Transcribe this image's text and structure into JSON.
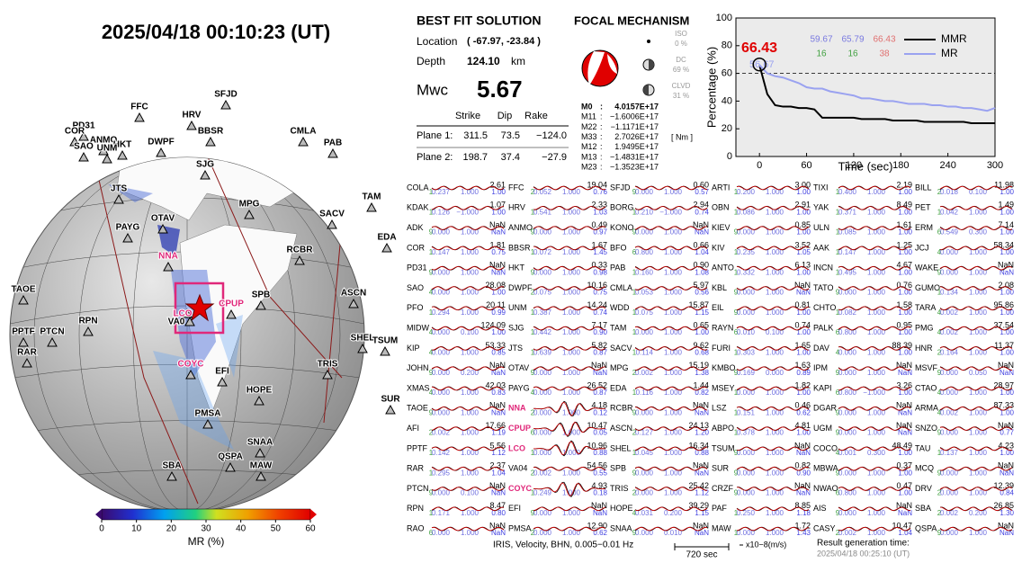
{
  "header": {
    "title": "2025/04/18  00:10:23 (UT)"
  },
  "solution": {
    "title": "BEST FIT SOLUTION",
    "location_label": "Location",
    "location": "( -67.97,  -23.84 )",
    "depth_label": "Depth",
    "depth": "124.10",
    "depth_unit": "km",
    "mw_label": "Mwc",
    "mw": "5.67",
    "columns": [
      "Strike",
      "Dip",
      "Rake"
    ],
    "planes": [
      [
        "Plane 1:",
        "311.5",
        "73.5",
        "−124.0"
      ],
      [
        "Plane 2:",
        "198.7",
        "37.4",
        "−27.9"
      ]
    ]
  },
  "focal": {
    "title": "FOCAL MECHANISM",
    "components": [
      [
        "ISO",
        "0 %"
      ],
      [
        "DC",
        "69 %"
      ],
      [
        "CLVD",
        "31 %"
      ]
    ],
    "tensor": [
      [
        "M0",
        ":",
        "4.0157E+17"
      ],
      [
        "M11",
        ":",
        "−1.6006E+17"
      ],
      [
        "M22",
        ":",
        "−1.1171E+17"
      ],
      [
        "M33",
        ":",
        "2.7026E+17"
      ],
      [
        "M12",
        ":",
        "1.9495E+17"
      ],
      [
        "M13",
        ":",
        "−1.4831E+17"
      ],
      [
        "M23",
        ":",
        "−1.3523E+17"
      ]
    ],
    "unit": "[ Nm ]"
  },
  "chart_data": {
    "type": "line",
    "x_label": "Time (sec)",
    "y_label": "Percentage (%)",
    "xlim": [
      -30,
      300
    ],
    "ylim": [
      0,
      100
    ],
    "xticks": [
      0,
      60,
      120,
      180,
      240,
      300
    ],
    "yticks": [
      0,
      20,
      40,
      60,
      80,
      100
    ],
    "threshold": 60,
    "x": [
      0,
      10,
      20,
      30,
      40,
      50,
      60,
      70,
      80,
      90,
      100,
      110,
      120,
      130,
      140,
      150,
      160,
      170,
      180,
      190,
      200,
      210,
      220,
      230,
      240,
      250,
      260,
      270,
      280,
      290,
      300
    ],
    "series": [
      {
        "name": "MMR",
        "color": "#000000",
        "values": [
          66,
          45,
          37,
          36,
          36,
          35,
          35,
          34,
          28,
          28,
          28,
          28,
          28,
          27,
          27,
          27,
          27,
          26,
          26,
          26,
          26,
          25,
          25,
          25,
          25,
          25,
          25,
          24,
          24,
          24,
          24
        ]
      },
      {
        "name": "MR",
        "color": "#9aa2f0",
        "values": [
          66,
          60,
          58,
          57,
          55,
          53,
          50,
          49,
          49,
          47,
          46,
          45,
          44,
          42,
          42,
          41,
          40,
          40,
          39,
          38,
          38,
          38,
          37,
          37,
          36,
          36,
          35,
          35,
          34,
          33,
          35
        ]
      }
    ],
    "peak": {
      "label": "66.43",
      "color": "#e00000",
      "x": 0,
      "y": 66.43
    },
    "behind_label": "56.67",
    "stats": [
      [
        {
          "text": "59.67",
          "color": "#7a7ae0"
        },
        {
          "text": "65.79",
          "color": "#7a7ae0"
        },
        {
          "text": "66.43",
          "color": "#e07070"
        }
      ],
      [
        {
          "text": "16",
          "color": "#40a040"
        },
        {
          "text": "16",
          "color": "#40a040"
        },
        {
          "text": "38",
          "color": "#e07070"
        }
      ]
    ]
  },
  "colorbar": {
    "label": "MR (%)",
    "ticks": [
      0,
      10,
      20,
      30,
      40,
      50,
      60
    ]
  },
  "map_stations": [
    {
      "name": "SFJD"
    },
    {
      "name": "FFC"
    },
    {
      "name": "HRV"
    },
    {
      "name": "PD31"
    },
    {
      "name": "COR"
    },
    {
      "name": "ANMO"
    },
    {
      "name": "HKT"
    },
    {
      "name": "SAO"
    },
    {
      "name": "BBSR"
    },
    {
      "name": "DWPF"
    },
    {
      "name": "UNM"
    },
    {
      "name": "SJG"
    },
    {
      "name": "CMLA"
    },
    {
      "name": "PAB"
    },
    {
      "name": "JTS"
    },
    {
      "name": "SACV"
    },
    {
      "name": "TAM"
    },
    {
      "name": "MPG"
    },
    {
      "name": "PAYG"
    },
    {
      "name": "OTAV"
    },
    {
      "name": "RCBR"
    },
    {
      "name": "NNA",
      "color": "#e0287a"
    },
    {
      "name": "ASCN"
    },
    {
      "name": "EDA"
    },
    {
      "name": "SPB"
    },
    {
      "name": "CPUP",
      "color": "#e0287a"
    },
    {
      "name": "LCO",
      "color": "#e0287a"
    },
    {
      "name": "SHEL"
    },
    {
      "name": "TAOE"
    },
    {
      "name": "RPN"
    },
    {
      "name": "VA0"
    },
    {
      "name": "PPTF"
    },
    {
      "name": "PTCN"
    },
    {
      "name": "RAR"
    },
    {
      "name": "COYC",
      "color": "#e0287a"
    },
    {
      "name": "TRIS"
    },
    {
      "name": "TSUM"
    },
    {
      "name": "EFI"
    },
    {
      "name": "SUR"
    },
    {
      "name": "HOPE"
    },
    {
      "name": "PMSA"
    },
    {
      "name": "SNAA"
    },
    {
      "name": "QSPA"
    },
    {
      "name": "SBA"
    },
    {
      "name": "MAW"
    }
  ],
  "stations": [
    [
      "COLA",
      "2.61",
      "1",
      "0.237",
      "1.000",
      "1.00"
    ],
    [
      "KDAK",
      "1.07",
      "1",
      "0.126",
      "−1.000",
      "1.00"
    ],
    [
      "ADK",
      "NaN",
      "9",
      "0.000",
      "1.000",
      "NaN"
    ],
    [
      "COR",
      "1.81",
      "1",
      "0.147",
      "1.000",
      "0.75"
    ],
    [
      "PD31",
      "NaN",
      "9",
      "0.000",
      "1.000",
      "NaN"
    ],
    [
      "SAO",
      "28.08",
      "4",
      "0.000",
      "1.000",
      "1.00"
    ],
    [
      "PFO",
      "20.11",
      "1",
      "0.294",
      "1.000",
      "0.99"
    ],
    [
      "MIDW",
      "124.09",
      "4",
      "0.000",
      "0.100",
      "1.00"
    ],
    [
      "KIP",
      "53.33",
      "4",
      "0.000",
      "1.000",
      "0.85"
    ],
    [
      "JOHN",
      "NaN",
      "9",
      "0.000",
      "0.200",
      "NaN"
    ],
    [
      "XMAS",
      "42.03",
      "4",
      "0.000",
      "1.000",
      "0.83"
    ],
    [
      "TAOE",
      "NaN",
      "9",
      "0.000",
      "1.000",
      "NaN"
    ],
    [
      "AFI",
      "17.66",
      "2",
      "0.002",
      "1.000",
      "1.19"
    ],
    [
      "PPTF",
      "5.56",
      "1",
      "0.142",
      "1.000",
      "1.12"
    ],
    [
      "RAR",
      "2.37",
      "1",
      "0.295",
      "1.000",
      "1.04"
    ],
    [
      "PTCN",
      "NaN",
      "9",
      "0.000",
      "0.100",
      "NaN"
    ],
    [
      "RPN",
      "8.47",
      "1",
      "0.171",
      "1.000",
      "0.80"
    ],
    [
      "RAO",
      "NaN",
      "6",
      "0.000",
      "1.000",
      "NaN"
    ],
    [
      "FFC",
      "19.04",
      "2",
      "0.052",
      "1.000",
      "0.76"
    ],
    [
      "HRV",
      "2.33",
      "1",
      "0.541",
      "1.000",
      "1.03"
    ],
    [
      "ANMO",
      "0.49",
      "9",
      "0.000",
      "1.000",
      "0.97"
    ],
    [
      "BBSR",
      "1.67",
      "1",
      "0.072",
      "1.000",
      "1.45"
    ],
    [
      "HKT",
      "0.33",
      "9",
      "0.000",
      "1.000",
      "0.98"
    ],
    [
      "DWPF",
      "10.16",
      "2",
      "0.075",
      "1.000",
      "0.75"
    ],
    [
      "UNM",
      "14.24",
      "1",
      "0.387",
      "1.000",
      "0.74"
    ],
    [
      "SJG",
      "7.17",
      "1",
      "0.442",
      "1.000",
      "0.90"
    ],
    [
      "JTS",
      "5.82",
      "1",
      "0.639",
      "1.000",
      "0.87"
    ],
    [
      "OTAV",
      "NaN",
      "9",
      "0.000",
      "1.000",
      "NaN"
    ],
    [
      "PAYG",
      "26.52",
      "4",
      "0.000",
      "1.000",
      "0.87"
    ],
    [
      "NNA",
      "4.18",
      "2",
      "0.000",
      "1.000",
      "0.12",
      "#e0287a"
    ],
    [
      "CPUP",
      "10.47",
      "6",
      "0.000",
      "1.000",
      "0.05",
      "#e0287a"
    ],
    [
      "LCO",
      "10.96",
      "1",
      "0.000",
      "1.000",
      "0.88",
      "#e0287a"
    ],
    [
      "VA04",
      "54.56",
      "2",
      "0.002",
      "1.000",
      "0.55"
    ],
    [
      "COYC",
      "4.93",
      "1",
      "0.249",
      "1.000",
      "0.18",
      "#e0287a"
    ],
    [
      "EFI",
      "NaN",
      "9",
      "0.000",
      "1.000",
      "NaN"
    ],
    [
      "PMSA",
      "12.90",
      "2",
      "0.000",
      "1.000",
      "0.62"
    ],
    [
      "SFJD",
      "0.60",
      "9",
      "0.000",
      "1.000",
      "0.57"
    ],
    [
      "BORG",
      "2.94",
      "1",
      "0.210",
      "−1.000",
      "0.74"
    ],
    [
      "KONO",
      "NaN",
      "9",
      "0.000",
      "1.000",
      "NaN"
    ],
    [
      "BFO",
      "0.66",
      "6",
      "0.800",
      "1.000",
      "1.04"
    ],
    [
      "PAB",
      "0.90",
      "1",
      "0.160",
      "1.000",
      "1.08"
    ],
    [
      "CMLA",
      "5.97",
      "1",
      "0.053",
      "1.000",
      "0.56"
    ],
    [
      "WDD",
      "15.87",
      "1",
      "0.075",
      "1.000",
      "1.15"
    ],
    [
      "TAM",
      "0.65",
      "1",
      "0.000",
      "1.000",
      "1.00"
    ],
    [
      "SACV",
      "9.62",
      "1",
      "0.114",
      "1.000",
      "0.68"
    ],
    [
      "MPG",
      "15.19",
      "2",
      "0.002",
      "1.000",
      "1.38"
    ],
    [
      "EDA",
      "1.44",
      "1",
      "0.116",
      "1.000",
      "0.82"
    ],
    [
      "RCBR",
      "NaN",
      "9",
      "0.000",
      "1.000",
      "NaN"
    ],
    [
      "ASCN",
      "24.13",
      "2",
      "0.127",
      "1.000",
      "1.20"
    ],
    [
      "SHEL",
      "16.34",
      "1",
      "0.045",
      "1.000",
      "0.88"
    ],
    [
      "SPB",
      "NaN",
      "9",
      "0.000",
      "1.000",
      "NaN"
    ],
    [
      "TRIS",
      "25.42",
      "2",
      "0.000",
      "1.000",
      "1.12"
    ],
    [
      "HOPE",
      "39.29",
      "4",
      "0.031",
      "0.200",
      "1.15"
    ],
    [
      "SNAA",
      "NaN",
      "9",
      "0.000",
      "0.010",
      "NaN"
    ],
    [
      "ARTI",
      "3.00",
      "1",
      "0.200",
      "1.000",
      "1.00"
    ],
    [
      "OBN",
      "2.91",
      "1",
      "0.086",
      "1.000",
      "1.00"
    ],
    [
      "KIEV",
      "0.85",
      "9",
      "0.000",
      "1.000",
      "1.00"
    ],
    [
      "KIV",
      "3.52",
      "1",
      "0.235",
      "1.000",
      "1.05"
    ],
    [
      "ANTO",
      "6.13",
      "1",
      "0.332",
      "1.000",
      "1.00"
    ],
    [
      "KBL",
      "NaN",
      "9",
      "0.000",
      "1.000",
      "NaN"
    ],
    [
      "EIL",
      "0.81",
      "9",
      "0.000",
      "1.000",
      "1.00"
    ],
    [
      "RAYN",
      "0.74",
      "6",
      "0.010",
      "0.100",
      "1.00"
    ],
    [
      "FURI",
      "1.65",
      "1",
      "0.303",
      "1.000",
      "1.00"
    ],
    [
      "KMBO",
      "1.63",
      "9",
      "0.169",
      "0.000",
      "0.89"
    ],
    [
      "MSEY",
      "1.82",
      "1",
      "0.000",
      "1.000",
      "1.00"
    ],
    [
      "LSZ",
      "0.46",
      "1",
      "0.151",
      "1.000",
      "0.62"
    ],
    [
      "ABPO",
      "4.81",
      "1",
      "0.378",
      "1.000",
      "1.00"
    ],
    [
      "TSUM",
      "NaN",
      "9",
      "0.000",
      "1.000",
      "NaN"
    ],
    [
      "SUR",
      "0.82",
      "9",
      "0.000",
      "1.000",
      "0.90"
    ],
    [
      "CRZF",
      "NaN",
      "9",
      "0.000",
      "1.000",
      "NaN"
    ],
    [
      "PAF",
      "8.85",
      "1",
      "0.250",
      "1.000",
      "1.18"
    ],
    [
      "MAW",
      "1.72",
      "1",
      "0.000",
      "1.000",
      "1.43"
    ],
    [
      "TIXI",
      "2.19",
      "1",
      "0.400",
      "1.000",
      "1.00"
    ],
    [
      "YAK",
      "8.49",
      "1",
      "0.371",
      "1.000",
      "1.00"
    ],
    [
      "ULN",
      "1.61",
      "1",
      "0.085",
      "1.000",
      "1.00"
    ],
    [
      "AAK",
      "1.25",
      "1",
      "0.147",
      "1.000",
      "1.00"
    ],
    [
      "INCN",
      "4.67",
      "1",
      "0.495",
      "1.000",
      "1.00"
    ],
    [
      "TATO",
      "0.76",
      "9",
      "0.000",
      "1.000",
      "1.00"
    ],
    [
      "CHTO",
      "1.58",
      "1",
      "0.082",
      "1.000",
      "1.00"
    ],
    [
      "PALK",
      "0.95",
      "6",
      "0.800",
      "1.000",
      "1.00"
    ],
    [
      "DAV",
      "88.39",
      "4",
      "0.000",
      "1.000",
      "1.00"
    ],
    [
      "IPM",
      "NaN",
      "9",
      "0.000",
      "1.000",
      "NaN"
    ],
    [
      "KAPI",
      "3.26",
      "6",
      "0.800",
      "−1.000",
      "1.00"
    ],
    [
      "DGAR",
      "NaN",
      "9",
      "0.000",
      "1.000",
      "NaN"
    ],
    [
      "UGM",
      "NaN",
      "9",
      "0.000",
      "1.000",
      "NaN"
    ],
    [
      "COCO",
      "48.49",
      "4",
      "0.001",
      "0.300",
      "1.00"
    ],
    [
      "MBWA",
      "0.37",
      "9",
      "0.000",
      "1.000",
      "1.00"
    ],
    [
      "NWAO",
      "0.47",
      "6",
      "0.800",
      "1.000",
      "1.00"
    ],
    [
      "AIS",
      "NaN",
      "9",
      "0.000",
      "1.000",
      "NaN"
    ],
    [
      "CASY",
      "10.47",
      "2",
      "0.002",
      "1.000",
      "1.04"
    ],
    [
      "BILL",
      "11.98",
      "2",
      "0.018",
      "0.100",
      "1.00"
    ],
    [
      "PET",
      "1.49",
      "1",
      "0.042",
      "1.000",
      "1.00"
    ],
    [
      "ERM",
      "7.14",
      "6",
      "0.549",
      "0.300",
      "1.00"
    ],
    [
      "JCJ",
      "58.34",
      "4",
      "0.000",
      "1.000",
      "1.00"
    ],
    [
      "WAKE",
      "NaN",
      "9",
      "0.000",
      "1.000",
      "NaN"
    ],
    [
      "GUMO",
      "2.08",
      "1",
      "0.134",
      "1.000",
      "1.00"
    ],
    [
      "TARA",
      "95.86",
      "4",
      "0.002",
      "1.000",
      "1.00"
    ],
    [
      "PMG",
      "37.54",
      "4",
      "0.002",
      "1.000",
      "1.00"
    ],
    [
      "HNR",
      "11.37",
      "2",
      "0.164",
      "1.000",
      "1.00"
    ],
    [
      "MSVF",
      "NaN",
      "9",
      "0.000",
      "0.050",
      "NaN"
    ],
    [
      "CTAO",
      "28.97",
      "4",
      "0.000",
      "1.000",
      "1.00"
    ],
    [
      "ARMA",
      "87.33",
      "4",
      "0.002",
      "1.000",
      "1.00"
    ],
    [
      "SNZO",
      "NaN",
      "9",
      "0.000",
      "1.000",
      "0.77"
    ],
    [
      "TAU",
      "4.23",
      "1",
      "0.137",
      "1.000",
      "1.00"
    ],
    [
      "MCQ",
      "NaN",
      "9",
      "0.000",
      "1.000",
      "NaN"
    ],
    [
      "DRV",
      "12.39",
      "2",
      "0.000",
      "1.000",
      "0.84"
    ],
    [
      "SBA",
      "26.85",
      "2",
      "0.002",
      "0.200",
      "1.30"
    ],
    [
      "QSPA",
      "NaN",
      "9",
      "0.000",
      "1.000",
      "NaN"
    ]
  ],
  "footer": {
    "filter": "IRIS,  Velocity,   BHN,   0.005−0.01 Hz",
    "scale": "720 sec",
    "units": "x10−8(m/s)",
    "gen_label": "Result generation time:",
    "gen_time": "2025/04/18 00:25:10 (UT)"
  }
}
